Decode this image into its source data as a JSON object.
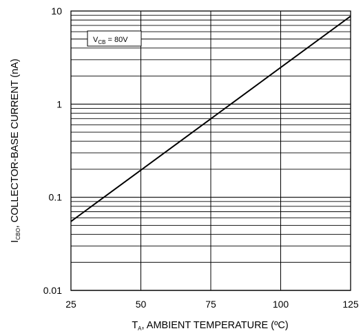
{
  "chart_data": {
    "type": "line",
    "title": "",
    "x_axis": {
      "label_main": "T",
      "label_sub": "A",
      "label_rest": ", AMBIENT TEMPERATURE (ºC)",
      "range": [
        25,
        125
      ],
      "ticks": [
        25,
        50,
        75,
        100,
        125
      ],
      "tick_labels": [
        "25",
        "50",
        "75",
        "100",
        "125"
      ]
    },
    "y_axis": {
      "label_main": "I",
      "label_sub": "CBO",
      "label_rest": ", COLLECTOR-BASE CURRENT (nA)",
      "scale": "log",
      "range": [
        0.01,
        10
      ],
      "ticks": [
        0.01,
        0.1,
        1,
        10
      ],
      "tick_labels": [
        "0.01",
        "0.1",
        "1",
        "10"
      ]
    },
    "grid": true,
    "series": [
      {
        "name": "",
        "x": [
          25,
          125
        ],
        "y": [
          0.055,
          8.8
        ]
      }
    ],
    "annotation": {
      "main": "V",
      "sub": "CB",
      "rest": " = 80V"
    }
  }
}
